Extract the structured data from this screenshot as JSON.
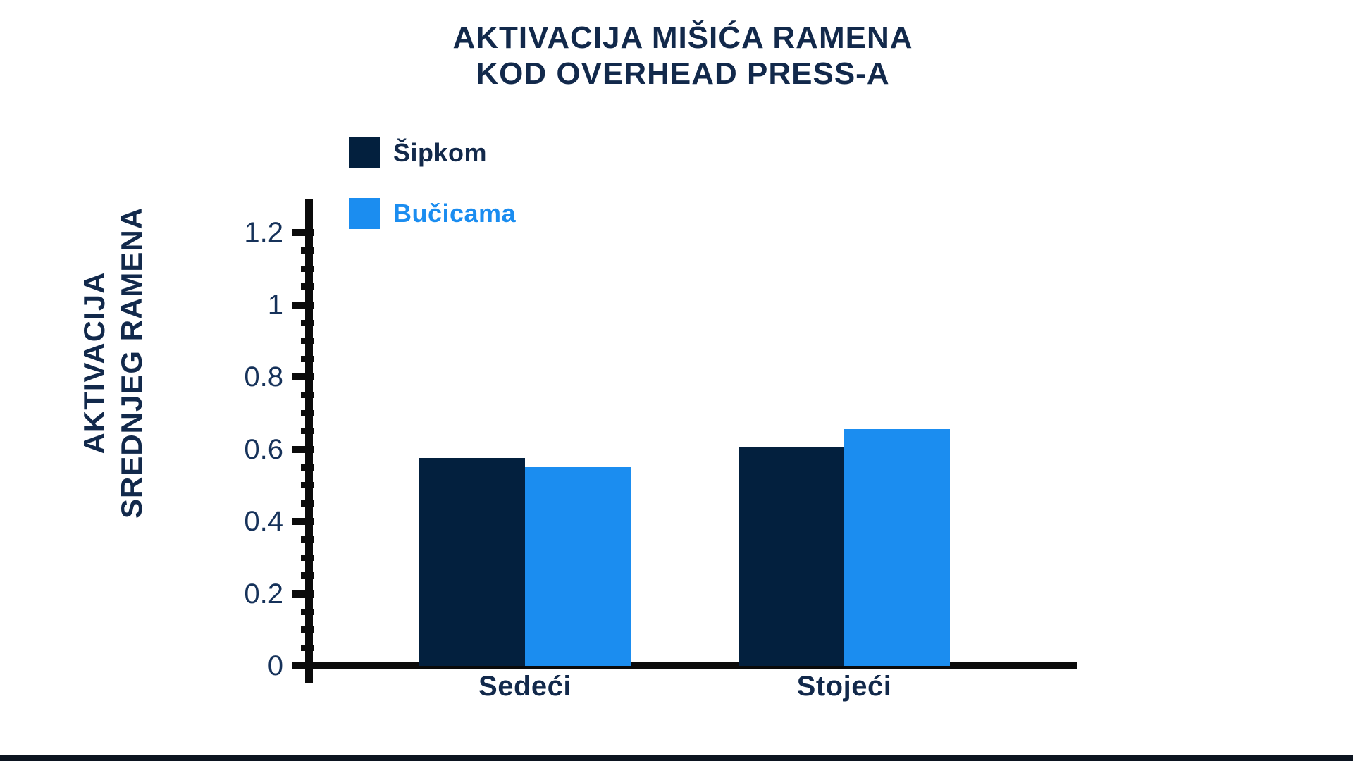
{
  "page": {
    "background": "#ffffff",
    "footer_bar_color": "#0c1420"
  },
  "chart_data": {
    "type": "bar",
    "title_lines": [
      "AKTIVACIJA MIŠIĆA RAMENA",
      "KOD OVERHEAD PRESS-A"
    ],
    "y_axis_title_lines": [
      "AKTIVACIJA",
      "SREDNJEG RAMENA"
    ],
    "categories": [
      "Sedeći",
      "Stojeći"
    ],
    "series": [
      {
        "name": "Šipkom",
        "color": "#03203e",
        "values": [
          0.575,
          0.605
        ]
      },
      {
        "name": "Bučicama",
        "color": "#1b8df0",
        "values": [
          0.55,
          0.655
        ]
      }
    ],
    "ylim": [
      0,
      1.2
    ],
    "y_major_step": 0.2,
    "y_minor_step": 0.05,
    "y_tick_labels": [
      "0",
      "0.2",
      "0.4",
      "0.6",
      "0.8",
      "1",
      "1.2"
    ],
    "legend_position": "top-left",
    "grid": false,
    "axis_color": "#0b0b0b",
    "title_color": "#12294b",
    "tick_label_color": "#16325a"
  }
}
